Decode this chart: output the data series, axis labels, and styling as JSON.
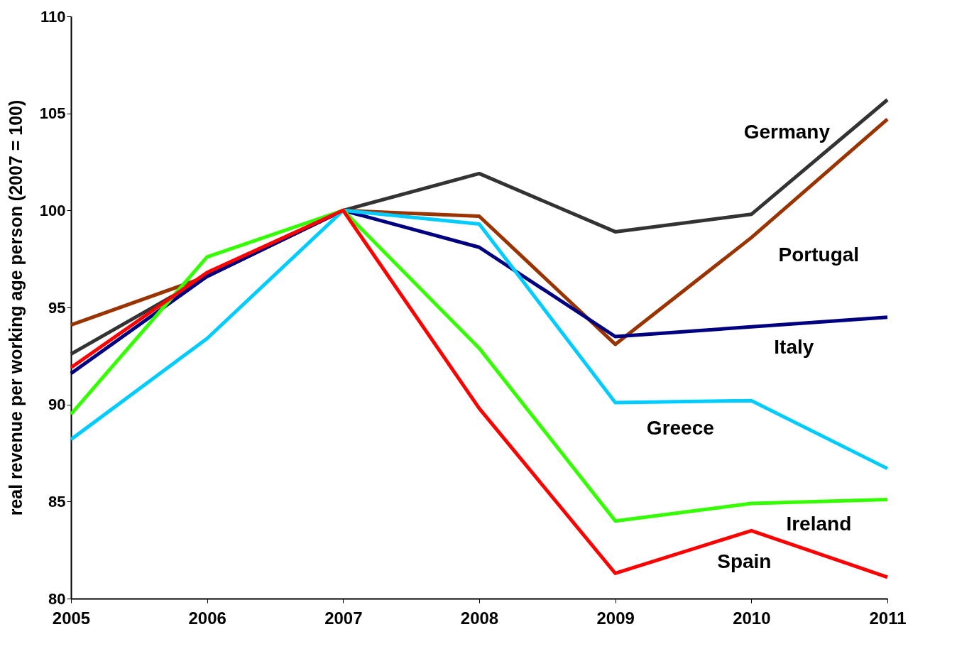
{
  "chart_data": {
    "type": "line",
    "ylabel": "real revenue per working age person (2007 = 100)",
    "x": [
      2005,
      2006,
      2007,
      2008,
      2009,
      2010,
      2011
    ],
    "xlim": [
      2005,
      2011
    ],
    "xticks": [
      2005,
      2006,
      2007,
      2008,
      2009,
      2010,
      2011
    ],
    "ylim": [
      80,
      110
    ],
    "yticks": [
      80,
      85,
      90,
      95,
      100,
      105,
      110
    ],
    "grid": false,
    "marker": "none",
    "line_style": "solid",
    "series": [
      {
        "name": "Germany",
        "color": "#333333",
        "values": [
          92.6,
          96.6,
          100,
          101.9,
          98.9,
          99.8,
          105.7
        ]
      },
      {
        "name": "Portugal",
        "color": "#993300",
        "values": [
          94.1,
          96.6,
          100,
          99.7,
          93.1,
          98.6,
          104.7
        ]
      },
      {
        "name": "Italy",
        "color": "#000080",
        "values": [
          91.6,
          96.6,
          100,
          98.1,
          93.5,
          94.0,
          94.5
        ]
      },
      {
        "name": "Greece",
        "color": "#00ccff",
        "values": [
          88.2,
          93.4,
          100,
          99.3,
          90.1,
          90.2,
          86.7
        ]
      },
      {
        "name": "Ireland",
        "color": "#33ff00",
        "values": [
          89.5,
          97.6,
          100,
          92.9,
          84.0,
          84.9,
          85.1
        ]
      },
      {
        "name": "Spain",
        "color": "#ff0000",
        "values": [
          91.9,
          96.8,
          100,
          89.8,
          81.3,
          83.5,
          81.1
        ]
      }
    ]
  }
}
